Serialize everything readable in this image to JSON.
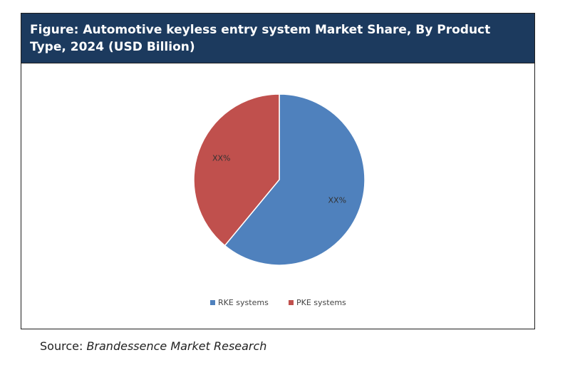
{
  "figure": {
    "title": "Figure: Automotive keyless entry system Market Share, By Product Type, 2024 (USD Billion)"
  },
  "source": {
    "prefix": "Source:",
    "name": "Brandessence Market Research"
  },
  "chart_data": {
    "type": "pie",
    "categories": [
      "RKE systems",
      "PKE systems"
    ],
    "values": [
      61,
      39
    ],
    "data_labels": [
      "XX%",
      "XX%"
    ],
    "colors": [
      "#4f81bd",
      "#c0504d"
    ],
    "legend": "bottom"
  }
}
